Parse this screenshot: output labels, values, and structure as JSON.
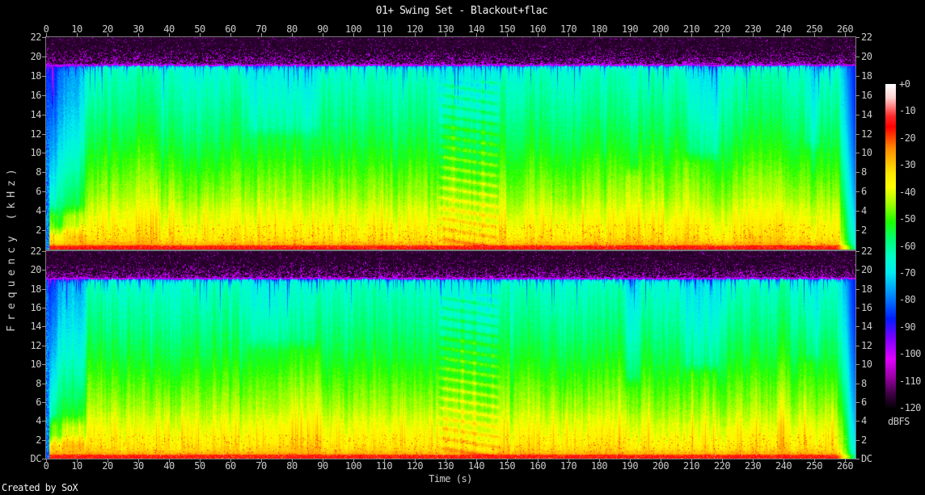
{
  "title": "01+ Swing Set - Blackout+flac",
  "footer": "Created by SoX",
  "axes": {
    "time_label": "Time (s)",
    "freq_label": "Frequency (kHz)",
    "time_ticks": [
      0,
      10,
      20,
      30,
      40,
      50,
      60,
      70,
      80,
      90,
      100,
      110,
      120,
      130,
      140,
      150,
      160,
      170,
      180,
      190,
      200,
      210,
      220,
      230,
      240,
      250,
      260
    ],
    "freq_ticks_panel1": [
      "22",
      "20",
      "18",
      "16",
      "14",
      "12",
      "10",
      "8",
      "6",
      "4",
      "2"
    ],
    "freq_ticks_panel2": [
      "22",
      "20",
      "18",
      "16",
      "14",
      "12",
      "10",
      "8",
      "6",
      "4",
      "2",
      "DC"
    ]
  },
  "colorbar": {
    "label": "dBFS",
    "ticks": [
      "+0",
      "-10",
      "-20",
      "-30",
      "-40",
      "-50",
      "-60",
      "-70",
      "-80",
      "-90",
      "-100",
      "-110",
      "-120"
    ]
  },
  "chart_data": {
    "type": "heatmap",
    "subtype": "audio-spectrogram",
    "title": "01+ Swing Set - Blackout+flac",
    "xlabel": "Time (s)",
    "ylabel": "Frequency (kHz)",
    "zlabel": "dBFS",
    "channels": 2,
    "x_range_s": [
      0,
      263.4
    ],
    "y_range_khz": [
      0,
      22
    ],
    "z_range_db": [
      -120,
      0
    ],
    "time_tick_step_s": 10,
    "freq_tick_step_khz": 2,
    "lowpass_cutoff_khz": 19.1,
    "noise_floor_db": -115,
    "palette": [
      {
        "db": 0,
        "color": "#ffffff"
      },
      {
        "db": -5,
        "color": "#ffd2d2"
      },
      {
        "db": -12,
        "color": "#ff2828"
      },
      {
        "db": -16,
        "color": "#ff0000"
      },
      {
        "db": -24,
        "color": "#ff8c00"
      },
      {
        "db": -33,
        "color": "#ffe600"
      },
      {
        "db": -38,
        "color": "#ffff00"
      },
      {
        "db": -45,
        "color": "#96ff00"
      },
      {
        "db": -51,
        "color": "#1eff00"
      },
      {
        "db": -58,
        "color": "#00ff78"
      },
      {
        "db": -64,
        "color": "#00ffc8"
      },
      {
        "db": -70,
        "color": "#00ebf0"
      },
      {
        "db": -79,
        "color": "#0082ff"
      },
      {
        "db": -87,
        "color": "#001eff"
      },
      {
        "db": -94,
        "color": "#7800ff"
      },
      {
        "db": -102,
        "color": "#e100ff"
      },
      {
        "db": -109,
        "color": "#9600a0"
      },
      {
        "db": -115,
        "color": "#3c0041"
      },
      {
        "db": -120,
        "color": "#060008"
      }
    ],
    "profile_db_by_khz": [
      [
        0,
        -13.5
      ],
      [
        0.32,
        -14.5
      ],
      [
        0.5,
        -27
      ],
      [
        0.95,
        -31.5
      ],
      [
        1.7,
        -35
      ],
      [
        3.2,
        -38
      ],
      [
        5.5,
        -44
      ],
      [
        8,
        -48.5
      ],
      [
        11,
        -54
      ],
      [
        14,
        -58.5
      ],
      [
        16.5,
        -61.5
      ],
      [
        18.4,
        -63.5
      ],
      [
        18.95,
        -66.5
      ],
      [
        19.12,
        -67
      ]
    ],
    "events": [
      {
        "t0": -2,
        "t1": 13.8,
        "db": -11.5,
        "fmin": 1.3,
        "ramp": 2
      },
      {
        "t0": -2,
        "t1": 4.2,
        "db": -9,
        "fmin": 3.5,
        "ramp": 1.5
      },
      {
        "t0": 3.6,
        "t1": 13.5,
        "db": 7,
        "fmin": 0.55,
        "fmax": 4.6,
        "ramp": 2.5
      },
      {
        "t0": 64,
        "t1": 90,
        "db": -4.5,
        "fmin": 11.5,
        "ramp": 3
      },
      {
        "t0": 126.5,
        "t1": 148.5,
        "db": -3,
        "fmin": 12.5,
        "ramp": 2
      },
      {
        "t0": 127,
        "t1": 148,
        "db": 0,
        "texture": true,
        "ramp": 2
      },
      {
        "t0": 188,
        "t1": 193.5,
        "db": -5,
        "fmin": 7.5,
        "ramp": 1.5
      },
      {
        "t0": 206.8,
        "t1": 219.5,
        "db": -6,
        "fmin": 9,
        "ramp": 1.8
      },
      {
        "t0": 246,
        "t1": 252.5,
        "db": -4,
        "fmin": 10,
        "ramp": 1.5
      },
      {
        "t0": 256.6,
        "t1": 263.4,
        "db": 0,
        "fade": true,
        "ramp": 0
      }
    ]
  }
}
